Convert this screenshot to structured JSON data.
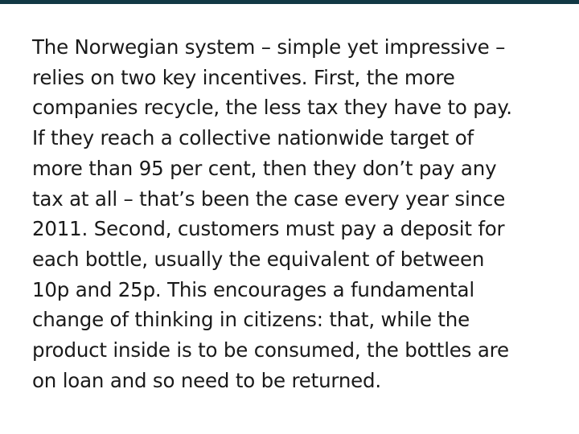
{
  "article": {
    "lines": [
      "The Norwegian system – simple yet impressive –",
      "relies on two key incentives. First, the more",
      "companies recycle, the less tax they have to pay.",
      "If they reach a collective nationwide target of",
      "more than 95 per cent, then they don’t pay any",
      "tax at all – that’s been the case every year since",
      "2011. Second, customers must pay a deposit for",
      "each bottle, usually the equivalent of between",
      "10p and 25p. This encourages a fundamental",
      "change of thinking in citizens: that, while the",
      "product inside is to be consumed, the bottles are",
      "on loan and so need to be returned."
    ]
  },
  "colors": {
    "top_bar": "#123844",
    "text": "#1a1a1a",
    "background": "#ffffff"
  }
}
